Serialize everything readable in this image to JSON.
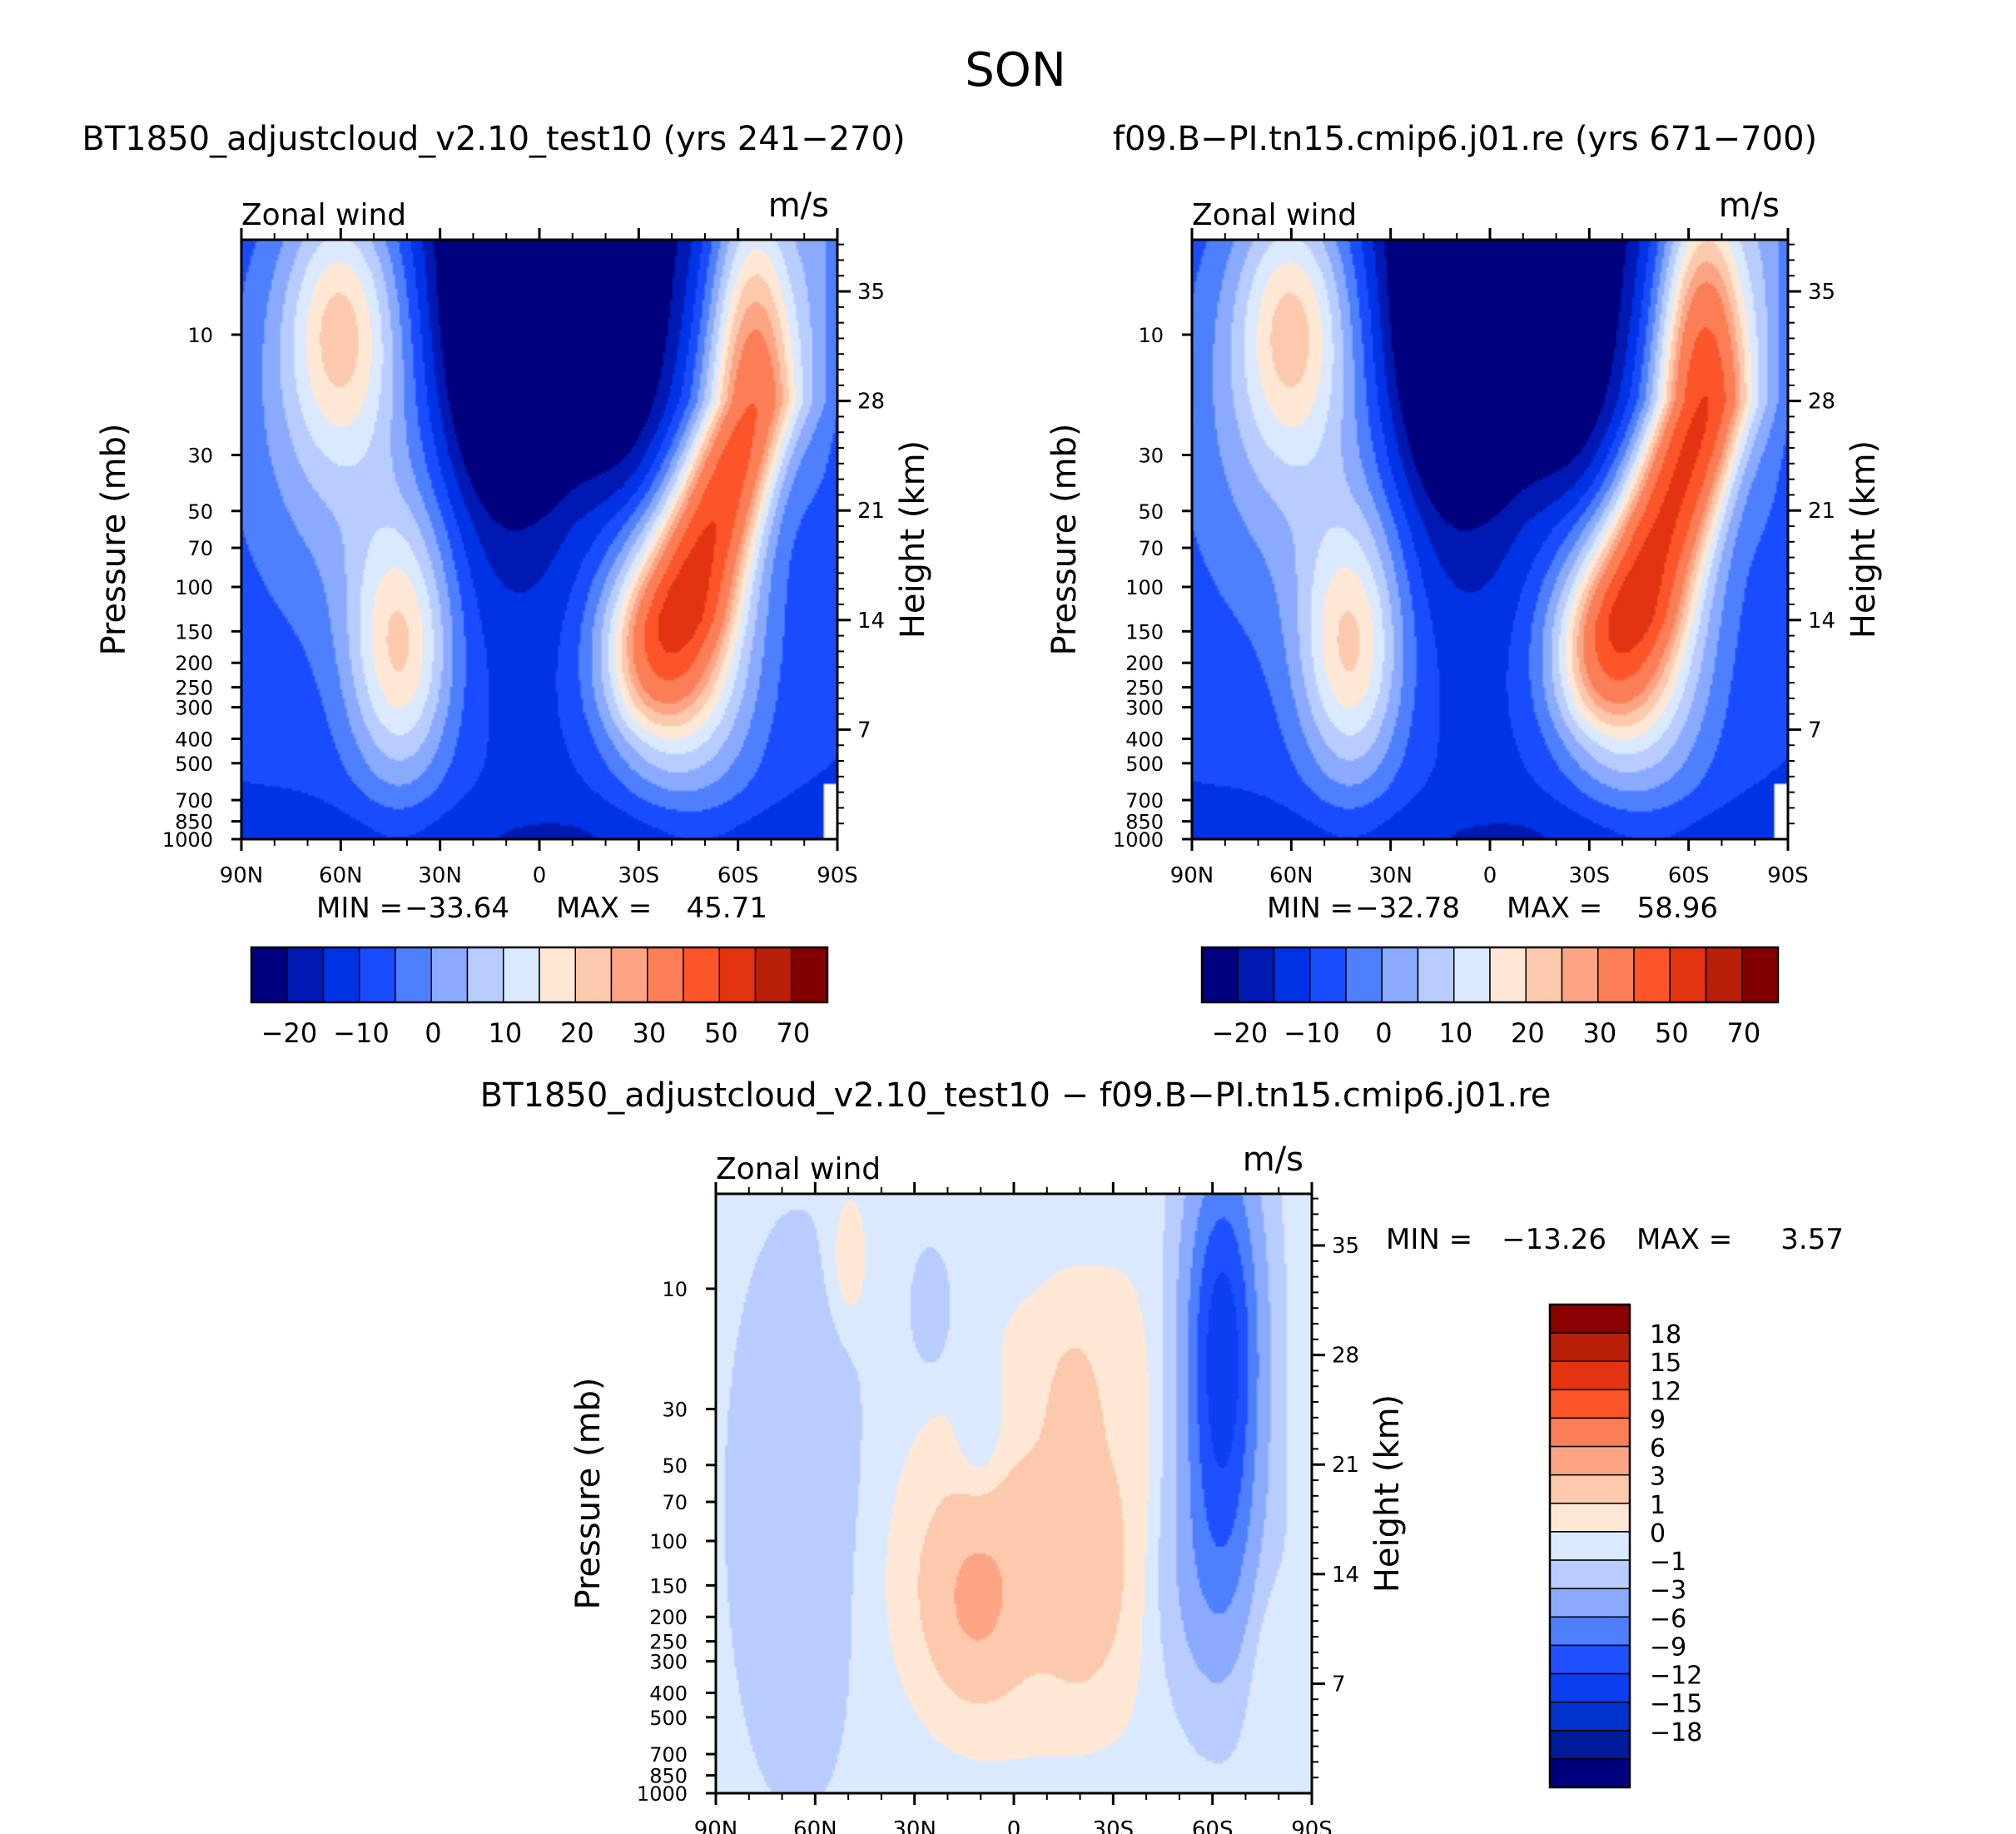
{
  "title": "SON",
  "chart_data": [
    {
      "type": "heatmap",
      "panel": "top-left",
      "title": "BT1850_adjustcloud_v2.10_test10 (yrs 241−270)",
      "left_label": "Zonal wind",
      "right_label": "m/s",
      "ylabel": "Pressure (mb)",
      "ylabel_right": "Height (km)",
      "x_ticks": [
        "90N",
        "60N",
        "30N",
        "0",
        "30S",
        "60S",
        "90S"
      ],
      "y_ticks": [
        "10",
        "30",
        "50",
        "70",
        "100",
        "150",
        "200",
        "250",
        "300",
        "400",
        "500",
        "700",
        "850",
        "1000"
      ],
      "y_right_ticks": [
        "35",
        "28",
        "21",
        "14",
        "7"
      ],
      "stats": {
        "min_label": "MIN =",
        "min": "−33.64",
        "max_label": "MAX =",
        "max": "45.71"
      },
      "colorbar_labels": [
        "−20",
        "−10",
        "0",
        "10",
        "20",
        "30",
        "50",
        "70"
      ],
      "features": [
        {
          "lat": 10,
          "height_km": 33,
          "value": -25
        },
        {
          "lat": -65,
          "height_km": 33,
          "value": 45
        },
        {
          "lat": 42,
          "height_km": 12,
          "value": 24
        },
        {
          "lat": -35,
          "height_km": 12,
          "value": 35
        }
      ]
    },
    {
      "type": "heatmap",
      "panel": "top-right",
      "title": "f09.B−PI.tn15.cmip6.j01.re (yrs 671−700)",
      "left_label": "Zonal wind",
      "right_label": "m/s",
      "ylabel": "Pressure (mb)",
      "ylabel_right": "Height (km)",
      "x_ticks": [
        "90N",
        "60N",
        "30N",
        "0",
        "30S",
        "60S",
        "90S"
      ],
      "y_ticks": [
        "10",
        "30",
        "50",
        "70",
        "100",
        "150",
        "200",
        "250",
        "300",
        "400",
        "500",
        "700",
        "850",
        "1000"
      ],
      "y_right_ticks": [
        "35",
        "28",
        "21",
        "14",
        "7"
      ],
      "stats": {
        "min_label": "MIN =",
        "min": "−32.78",
        "max_label": "MAX =",
        "max": "58.96"
      },
      "colorbar_labels": [
        "−20",
        "−10",
        "0",
        "10",
        "20",
        "30",
        "50",
        "70"
      ],
      "features": [
        {
          "lat": 10,
          "height_km": 33,
          "value": -24
        },
        {
          "lat": -65,
          "height_km": 33,
          "value": 55
        },
        {
          "lat": 42,
          "height_km": 12,
          "value": 24
        },
        {
          "lat": -35,
          "height_km": 12,
          "value": 35
        }
      ]
    },
    {
      "type": "heatmap",
      "panel": "bottom",
      "title": "BT1850_adjustcloud_v2.10_test10 − f09.B−PI.tn15.cmip6.j01.re",
      "left_label": "Zonal wind",
      "right_label": "m/s",
      "ylabel": "Pressure (mb)",
      "ylabel_right": "Height (km)",
      "x_ticks": [
        "90N",
        "60N",
        "30N",
        "0",
        "30S",
        "60S",
        "90S"
      ],
      "y_ticks": [
        "10",
        "30",
        "50",
        "70",
        "100",
        "150",
        "200",
        "250",
        "300",
        "400",
        "500",
        "700",
        "850",
        "1000"
      ],
      "y_right_ticks": [
        "35",
        "28",
        "21",
        "14",
        "7"
      ],
      "stats": {
        "min_label": "MIN =",
        "min": "−13.26",
        "max_label": "MAX =",
        "max": "3.57"
      },
      "colorbar_labels": [
        "18",
        "15",
        "12",
        "9",
        "6",
        "3",
        "1",
        "0",
        "−1",
        "−3",
        "−6",
        "−9",
        "−12",
        "−15",
        "−18"
      ],
      "features": [
        {
          "lat": -63,
          "height_km": 28,
          "value": -13
        },
        {
          "lat": 15,
          "height_km": 12,
          "value": 3
        }
      ]
    }
  ],
  "colors": {
    "main_scale": [
      "#00007f",
      "#0019b2",
      "#0033e5",
      "#1a4cff",
      "#4d7fff",
      "#8aaaff",
      "#b8ccff",
      "#dbe9ff",
      "#fee8d5",
      "#fdc9ad",
      "#fca483",
      "#fb7e56",
      "#fb5529",
      "#e33310",
      "#b8200a",
      "#820000"
    ],
    "diff_scale": [
      "#00007f",
      "#001a9c",
      "#0033cc",
      "#0d3ff2",
      "#1e50ff",
      "#4d7fff",
      "#8aaaff",
      "#b8ccff",
      "#dbe9ff",
      "#fee8d5",
      "#fdc9ad",
      "#fca483",
      "#fb7e56",
      "#fb5529",
      "#e33310",
      "#b8200a",
      "#8b0000"
    ]
  }
}
